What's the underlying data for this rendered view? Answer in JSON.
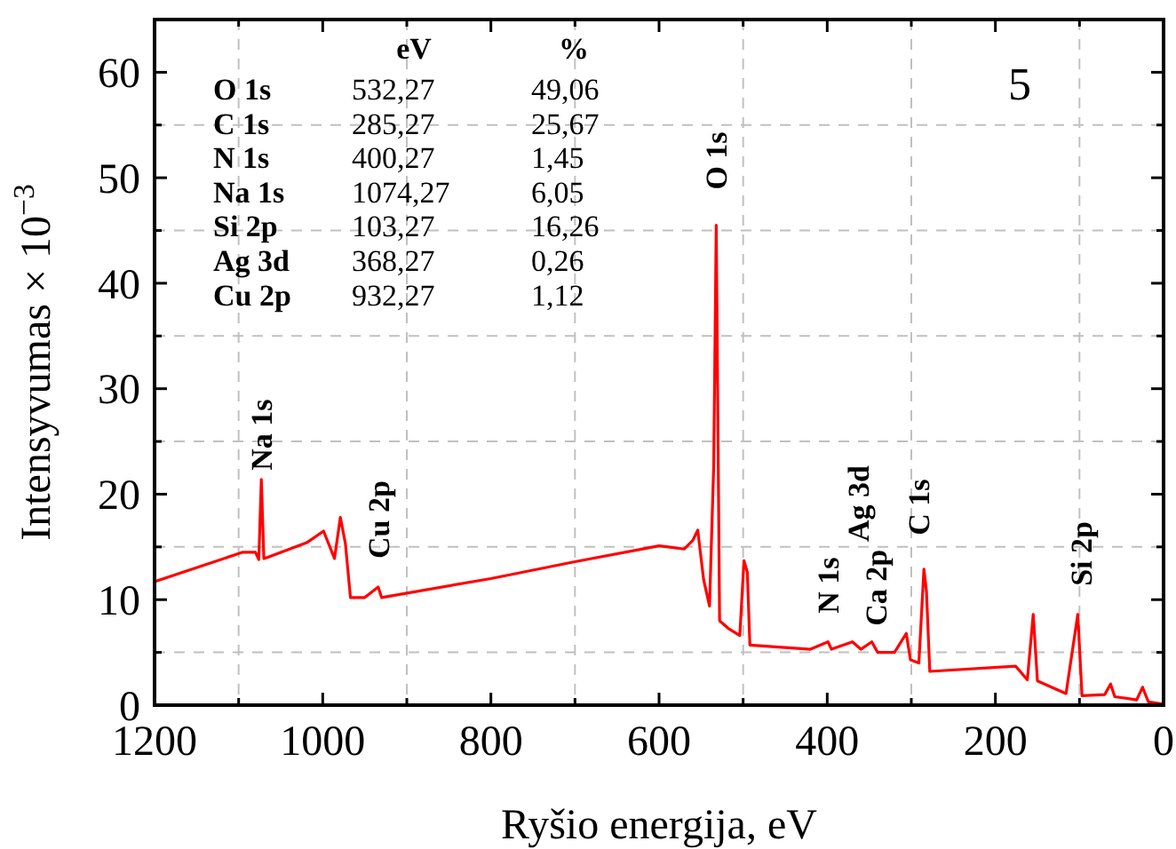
{
  "chart_data": {
    "type": "line",
    "xlabel": "Ryšio energija, eV",
    "ylabel": "Intensyvumas × 10$^{−3}$",
    "xlim": [
      1200,
      0
    ],
    "ylim": [
      0,
      65
    ],
    "xticks": [
      1200,
      {
        "value": 1100,
        "label": null
      },
      1000,
      {
        "value": 900,
        "label": null
      },
      800,
      {
        "value": 700,
        "label": null
      },
      600,
      {
        "value": 500,
        "label": null
      },
      400,
      {
        "value": 300,
        "label": null
      },
      200,
      {
        "value": 100,
        "label": null
      },
      0
    ],
    "yticks": [
      0,
      {
        "value": 5,
        "label": null
      },
      10,
      {
        "value": 15,
        "label": null
      },
      20,
      {
        "value": 25,
        "label": null
      },
      30,
      {
        "value": 35,
        "label": null
      },
      40,
      {
        "value": 45,
        "label": null
      },
      50,
      {
        "value": 55,
        "label": null
      },
      60
    ],
    "grid": true,
    "series": [
      {
        "color": "#ff0000",
        "x": [
          1200,
          1095,
          1080,
          1076,
          1073,
          1070,
          1066,
          1019,
          999,
          986,
          979,
          973,
          967,
          950,
          934,
          930,
          800,
          700,
          600,
          570,
          560,
          554,
          547,
          540,
          535,
          532,
          528,
          518,
          504,
          499,
          495,
          492,
          420,
          399,
          395,
          370,
          360,
          347,
          340,
          320,
          306,
          301,
          291,
          285,
          282,
          278,
          176,
          162,
          155,
          150,
          116,
          102,
          97,
          70,
          63,
          58,
          32,
          25,
          18,
          0
        ],
        "values": [
          11.7,
          14.5,
          14.5,
          13.8,
          21.4,
          13.9,
          14.0,
          15.4,
          16.5,
          13.9,
          17.8,
          15.3,
          10.2,
          10.2,
          11.2,
          10.2,
          12.0,
          13.6,
          15.1,
          14.8,
          15.6,
          16.6,
          11.9,
          9.4,
          22.7,
          45.5,
          8.0,
          7.3,
          6.6,
          13.7,
          12.6,
          5.7,
          5.3,
          6.0,
          5.3,
          6.0,
          5.3,
          6.0,
          5.0,
          5.0,
          6.8,
          4.3,
          4.0,
          12.9,
          10.8,
          3.2,
          3.7,
          2.4,
          8.6,
          2.3,
          1.1,
          8.6,
          0.9,
          1.0,
          2.0,
          0.8,
          0.5,
          1.7,
          0.3,
          0.1
        ]
      }
    ],
    "annotations": [
      "5",
      "Ag 3d",
      "eV",
      "%",
      "O 1s",
      "532,27",
      "49,06",
      "C 1s",
      "285,27",
      "25,67",
      "N 1s",
      "400,27",
      "1,45",
      "Na 1s",
      "1074,27",
      "6,05",
      "Si 2p",
      "103,27",
      "16,26",
      "Ag 3d",
      "368,27",
      "0,26",
      "Cu 2p",
      "932,27",
      "1,12",
      {
        "text": "Na 1s",
        "x": 1073,
        "y": 21.4
      },
      {
        "text": "Cu 2p",
        "x": 934,
        "y": 11.2
      },
      {
        "text": "O 1s",
        "x": 532,
        "y": 45.5
      },
      {
        "text": "N 1s",
        "x": 399,
        "y": 6.0
      },
      {
        "text": "Ca 2p",
        "x": 347,
        "y": 6.0
      },
      {
        "text": "C 1s",
        "x": 285,
        "y": 12.9
      },
      {
        "text": "Si 2p",
        "x": 102,
        "y": 8.6
      }
    ]
  }
}
